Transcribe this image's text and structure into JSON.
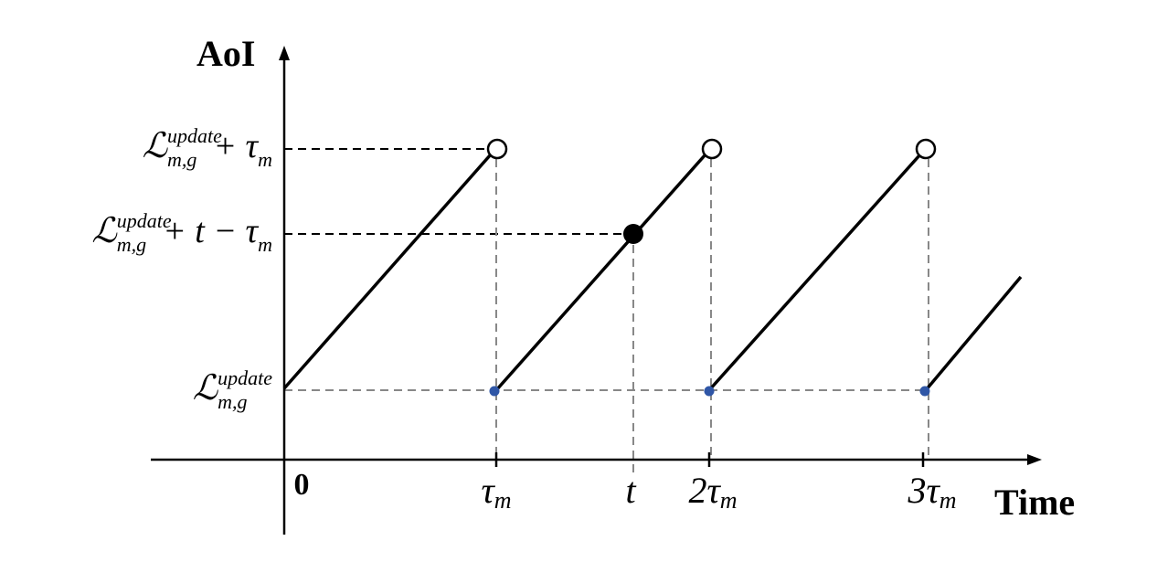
{
  "axes": {
    "y_title": "AoI",
    "x_title": "Time"
  },
  "y_labels": [
    {
      "base": "ℒ",
      "sup": "update",
      "sub": "m,g",
      "tail": "+ τ",
      "tail_sub": "m"
    },
    {
      "base": "ℒ",
      "sup": "update",
      "sub": "m,g",
      "tail": "+ t − τ",
      "tail_sub": "m"
    },
    {
      "base": "ℒ",
      "sup": "update",
      "sub": "m,g"
    }
  ],
  "x_labels": [
    {
      "text": "0"
    },
    {
      "text": "τ",
      "sub": "m"
    },
    {
      "text": "t"
    },
    {
      "text": "2τ",
      "sub": "m"
    },
    {
      "text": "3τ",
      "sub": "m"
    }
  ]
}
